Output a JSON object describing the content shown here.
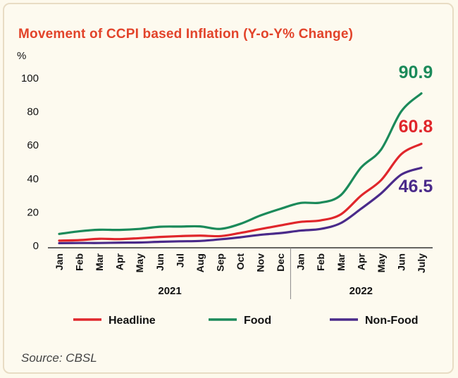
{
  "chart_data": {
    "type": "line",
    "title": "Movement of CCPI based Inflation (Y-o-Y% Change)",
    "ylabel": "%",
    "ylim": [
      0,
      100
    ],
    "yticks": [
      "0",
      "20",
      "40",
      "60",
      "80",
      "100"
    ],
    "categories": [
      "Jan",
      "Feb",
      "Mar",
      "Apr",
      "May",
      "Jun",
      "Jul",
      "Aug",
      "Sep",
      "Oct",
      "Nov",
      "Dec",
      "Jan",
      "Feb",
      "Mar",
      "Apr",
      "May",
      "Jun",
      "July"
    ],
    "years": [
      {
        "label": "2021",
        "start": 0,
        "end": 11
      },
      {
        "label": "2022",
        "start": 12,
        "end": 18
      }
    ],
    "series": [
      {
        "name": "Headline",
        "color": "#e0262b",
        "values": [
          3.0,
          3.3,
          4.1,
          3.9,
          4.5,
          5.2,
          5.7,
          6.0,
          5.7,
          7.6,
          9.9,
          12.1,
          14.2,
          15.1,
          18.7,
          29.8,
          39.1,
          54.6,
          60.8
        ],
        "end_label": "60.8"
      },
      {
        "name": "Food",
        "color": "#1b8a5a",
        "values": [
          7.0,
          8.6,
          9.5,
          9.4,
          10.0,
          11.3,
          11.4,
          11.5,
          10.0,
          13.0,
          18.0,
          22.0,
          25.5,
          25.7,
          30.2,
          46.6,
          57.4,
          80.1,
          90.9
        ],
        "end_label": "90.9"
      },
      {
        "name": "Non-Food",
        "color": "#4a2a8a",
        "values": [
          1.5,
          1.6,
          1.6,
          1.8,
          1.9,
          2.3,
          2.6,
          2.8,
          3.8,
          5.0,
          6.5,
          7.5,
          9.0,
          10.0,
          13.5,
          22.0,
          31.2,
          42.4,
          46.5
        ],
        "end_label": "46.5"
      }
    ],
    "legend_position": "bottom",
    "grid": false
  },
  "source": "Source: CBSL"
}
